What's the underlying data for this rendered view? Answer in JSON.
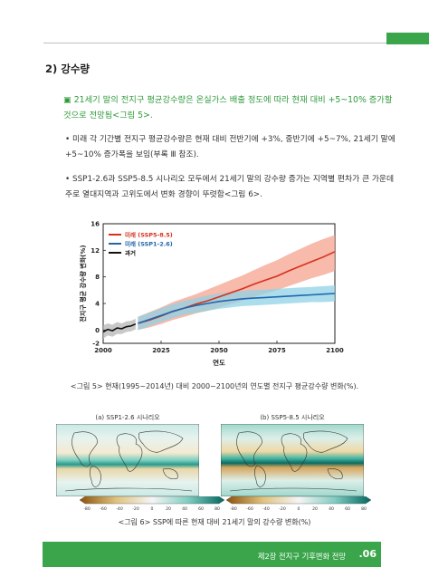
{
  "section": {
    "title": "2) 강수량"
  },
  "highlight": {
    "marker": "▣",
    "text": "21세기 말의 전지구 평균강수량은 온실가스 배출 정도에 따라 현재 대비 +5~10% 증가할 것으로 전망됨<그림 5>."
  },
  "bullets": [
    {
      "marker": "•",
      "text": "미래 각 기간별 전지구 평균강수량은 현재 대비 전반기에 +3%, 중반기에 +5~7%, 21세기 말에 +5~10% 증가폭을 보임(부록 Ⅲ 참조)."
    },
    {
      "marker": "•",
      "text": "SSP1-2.6과 SSP5-8.5 시나리오 모두에서 21세기 말의 강수량 증가는 지역별 편차가 큰 가운데 주로 열대지역과 고위도에서 변화 경향이 뚜렷함<그림 6>."
    }
  ],
  "figure5": {
    "caption": "<그림 5> 현재(1995~2014년) 대비 2000~2100년의 연도별 전지구 평균강수량 변화(%)."
  },
  "chart_data": {
    "type": "line",
    "xlabel": "연도",
    "ylabel": "전지구 평균 강수량 변화(%)",
    "xlim": [
      2000,
      2100
    ],
    "ylim": [
      -2,
      16
    ],
    "xticks": [
      2000,
      2025,
      2050,
      2075,
      2100
    ],
    "yticks": [
      -2,
      0,
      4,
      8,
      12,
      16
    ],
    "legend_position": "top-left",
    "grid": false,
    "series": [
      {
        "name": "미래 (SSP5-8.5)",
        "color": "#d7301f",
        "band_color": "#f4a38f",
        "x": [
          2015,
          2020,
          2025,
          2030,
          2035,
          2040,
          2045,
          2050,
          2055,
          2060,
          2065,
          2070,
          2075,
          2080,
          2085,
          2090,
          2095,
          2100
        ],
        "values": [
          1.0,
          1.5,
          2.1,
          2.8,
          3.3,
          3.9,
          4.4,
          5.0,
          5.6,
          6.2,
          6.9,
          7.5,
          8.1,
          8.9,
          9.6,
          10.3,
          11.0,
          11.8
        ],
        "lower": [
          0.0,
          0.4,
          0.9,
          1.5,
          2.0,
          2.5,
          2.9,
          3.4,
          3.9,
          4.4,
          5.0,
          5.5,
          6.0,
          6.6,
          7.2,
          7.8,
          8.3,
          8.9
        ],
        "upper": [
          2.0,
          2.7,
          3.4,
          4.2,
          4.8,
          5.4,
          6.1,
          6.8,
          7.5,
          8.2,
          9.0,
          9.8,
          10.5,
          11.4,
          12.2,
          13.0,
          13.7,
          14.3
        ]
      },
      {
        "name": "미래 (SSP1-2.6)",
        "color": "#2166ac",
        "band_color": "#8fd1e6",
        "x": [
          2015,
          2020,
          2025,
          2030,
          2035,
          2040,
          2045,
          2050,
          2055,
          2060,
          2065,
          2070,
          2075,
          2080,
          2085,
          2090,
          2095,
          2100
        ],
        "values": [
          1.0,
          1.6,
          2.2,
          2.8,
          3.3,
          3.7,
          4.0,
          4.3,
          4.5,
          4.7,
          4.8,
          4.9,
          5.0,
          5.1,
          5.2,
          5.3,
          5.4,
          5.5
        ],
        "lower": [
          0.0,
          0.6,
          1.2,
          1.8,
          2.3,
          2.6,
          2.9,
          3.2,
          3.4,
          3.6,
          3.7,
          3.8,
          3.9,
          4.0,
          4.1,
          4.2,
          4.2,
          4.3
        ],
        "upper": [
          2.0,
          2.6,
          3.3,
          3.9,
          4.4,
          4.8,
          5.2,
          5.5,
          5.7,
          5.9,
          6.0,
          6.1,
          6.2,
          6.3,
          6.4,
          6.5,
          6.6,
          6.7
        ]
      },
      {
        "name": "과거",
        "color": "#111111",
        "band_color": "#b5b5b5",
        "x": [
          2000,
          2002,
          2004,
          2006,
          2008,
          2010,
          2012,
          2014
        ],
        "values": [
          -0.3,
          0.1,
          -0.1,
          0.3,
          0.2,
          0.5,
          0.6,
          0.9
        ],
        "lower": [
          -1.3,
          -0.8,
          -1.0,
          -0.6,
          -0.6,
          -0.3,
          -0.2,
          0.1
        ],
        "upper": [
          0.7,
          1.0,
          0.8,
          1.2,
          1.0,
          1.3,
          1.4,
          1.7
        ]
      }
    ]
  },
  "figure6": {
    "panel_a_label": "(a) SSP1-2.6 시나리오",
    "panel_b_label": "(b) SSP5-8.5 시나리오",
    "colorbar_ticks": [
      "-80",
      "-60",
      "-40",
      "-20",
      "0",
      "20",
      "40",
      "60",
      "80"
    ],
    "caption": "<그림 6> SSP에 따른 현재 대비 21세기 말의 강수량 변화(%)"
  },
  "footer": {
    "chapter": "제2장 전지구 기후변화 전망",
    "page": ".06"
  },
  "colors": {
    "accent": "#3aa54a",
    "highlight_text": "#2f9a3b"
  }
}
